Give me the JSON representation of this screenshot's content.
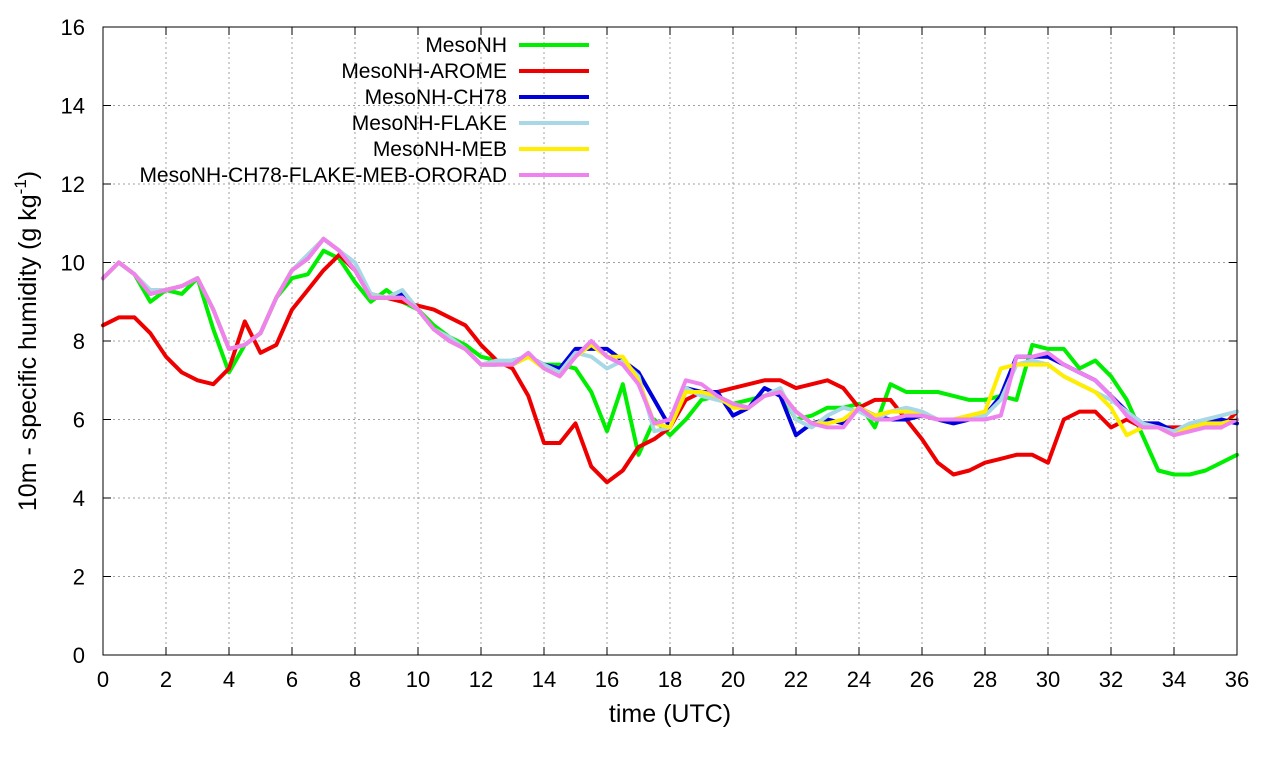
{
  "chart_data": {
    "type": "line",
    "title": "",
    "xlabel": "time (UTC)",
    "ylabel_main": "10m - specific humidity (g kg",
    "ylabel_sup": "-1",
    "ylabel_close": ")",
    "xlim": [
      0,
      36
    ],
    "ylim": [
      0,
      16
    ],
    "xticks": [
      0,
      2,
      4,
      6,
      8,
      10,
      12,
      14,
      16,
      18,
      20,
      22,
      24,
      26,
      28,
      30,
      32,
      34,
      36
    ],
    "yticks": [
      0,
      2,
      4,
      6,
      8,
      10,
      12,
      14,
      16
    ],
    "grid": true,
    "legend_position": "top-left",
    "series": [
      {
        "name": "MesoNH",
        "color": "#00ee00",
        "x": [
          0,
          0.5,
          1,
          1.5,
          2,
          2.5,
          3,
          3.5,
          4,
          4.5,
          5,
          5.5,
          6,
          6.5,
          7,
          7.5,
          8,
          8.5,
          9,
          9.5,
          10,
          10.5,
          11,
          11.5,
          12,
          12.5,
          13,
          13.5,
          14,
          14.5,
          15,
          15.5,
          16,
          16.5,
          17,
          17.5,
          18,
          18.5,
          19,
          19.5,
          20,
          20.5,
          21,
          21.5,
          22,
          22.5,
          23,
          23.5,
          24,
          24.5,
          25,
          25.5,
          26,
          26.5,
          27,
          27.5,
          28,
          28.5,
          29,
          29.5,
          30,
          30.5,
          31,
          31.5,
          32,
          32.5,
          33,
          33.5,
          34,
          34.5,
          35,
          35.5,
          36
        ],
        "values": [
          9.6,
          10.0,
          9.7,
          9.0,
          9.3,
          9.2,
          9.6,
          8.3,
          7.2,
          7.9,
          8.2,
          9.1,
          9.6,
          9.7,
          10.3,
          10.1,
          9.5,
          9.0,
          9.3,
          9.0,
          8.8,
          8.4,
          8.1,
          7.9,
          7.6,
          7.5,
          7.4,
          7.6,
          7.4,
          7.4,
          7.3,
          6.7,
          5.7,
          6.9,
          5.1,
          6.0,
          5.6,
          6.0,
          6.5,
          6.6,
          6.4,
          6.5,
          6.6,
          6.7,
          6.0,
          6.1,
          6.3,
          6.3,
          6.4,
          5.8,
          6.9,
          6.7,
          6.7,
          6.7,
          6.6,
          6.5,
          6.5,
          6.6,
          6.5,
          7.9,
          7.8,
          7.8,
          7.3,
          7.5,
          7.1,
          6.5,
          5.6,
          4.7,
          4.6,
          4.6,
          4.7,
          4.9,
          5.1
        ]
      },
      {
        "name": "MesoNH-AROME",
        "color": "#ee0000",
        "x": [
          0,
          0.5,
          1,
          1.5,
          2,
          2.5,
          3,
          3.5,
          4,
          4.5,
          5,
          5.5,
          6,
          6.5,
          7,
          7.5,
          8,
          8.5,
          9,
          9.5,
          10,
          10.5,
          11,
          11.5,
          12,
          12.5,
          13,
          13.5,
          14,
          14.5,
          15,
          15.5,
          16,
          16.5,
          17,
          17.5,
          18,
          18.5,
          19,
          19.5,
          20,
          20.5,
          21,
          21.5,
          22,
          22.5,
          23,
          23.5,
          24,
          24.5,
          25,
          25.5,
          26,
          26.5,
          27,
          27.5,
          28,
          28.5,
          29,
          29.5,
          30,
          30.5,
          31,
          31.5,
          32,
          32.5,
          33,
          33.5,
          34,
          34.5,
          35,
          35.5,
          36
        ],
        "values": [
          8.4,
          8.6,
          8.6,
          8.2,
          7.6,
          7.2,
          7.0,
          6.9,
          7.3,
          8.5,
          7.7,
          7.9,
          8.8,
          9.3,
          9.8,
          10.2,
          9.8,
          9.2,
          9.1,
          9.0,
          8.9,
          8.8,
          8.6,
          8.4,
          7.9,
          7.5,
          7.3,
          6.6,
          5.4,
          5.4,
          5.9,
          4.8,
          4.4,
          4.7,
          5.3,
          5.5,
          5.8,
          6.5,
          6.7,
          6.7,
          6.8,
          6.9,
          7.0,
          7.0,
          6.8,
          6.9,
          7.0,
          6.8,
          6.3,
          6.5,
          6.5,
          6.0,
          5.5,
          4.9,
          4.6,
          4.7,
          4.9,
          5.0,
          5.1,
          5.1,
          4.9,
          6.0,
          6.2,
          6.2,
          5.8,
          6.0,
          5.8,
          5.8,
          5.8,
          5.8,
          5.8,
          5.8,
          6.2
        ]
      },
      {
        "name": "MesoNH-CH78",
        "color": "#0000dd",
        "x": [
          0,
          0.5,
          1,
          1.5,
          2,
          2.5,
          3,
          3.5,
          4,
          4.5,
          5,
          5.5,
          6,
          6.5,
          7,
          7.5,
          8,
          8.5,
          9,
          9.5,
          10,
          10.5,
          11,
          11.5,
          12,
          12.5,
          13,
          13.5,
          14,
          14.5,
          15,
          15.5,
          16,
          16.5,
          17,
          17.5,
          18,
          18.5,
          19,
          19.5,
          20,
          20.5,
          21,
          21.5,
          22,
          22.5,
          23,
          23.5,
          24,
          24.5,
          25,
          25.5,
          26,
          26.5,
          27,
          27.5,
          28,
          28.5,
          29,
          29.5,
          30,
          30.5,
          31,
          31.5,
          32,
          32.5,
          33,
          33.5,
          34,
          34.5,
          35,
          35.5,
          36
        ],
        "values": [
          9.6,
          10.0,
          9.7,
          9.2,
          9.3,
          9.4,
          9.6,
          8.8,
          7.8,
          7.9,
          8.2,
          9.1,
          9.8,
          10.1,
          10.6,
          10.3,
          9.8,
          9.1,
          9.1,
          9.2,
          8.8,
          8.3,
          8.0,
          7.8,
          7.4,
          7.4,
          7.5,
          7.6,
          7.4,
          7.3,
          7.8,
          7.8,
          7.8,
          7.5,
          7.2,
          6.5,
          5.8,
          6.8,
          6.7,
          6.7,
          6.1,
          6.3,
          6.8,
          6.6,
          5.6,
          5.9,
          6.0,
          5.9,
          6.3,
          6.1,
          6.0,
          6.0,
          6.1,
          6.0,
          5.9,
          6.0,
          6.1,
          6.6,
          7.6,
          7.6,
          7.6,
          7.4,
          7.2,
          7.0,
          6.6,
          6.2,
          5.9,
          5.9,
          5.7,
          5.8,
          6.0,
          6.0,
          5.9
        ]
      },
      {
        "name": "MesoNH-FLAKE",
        "color": "#a8d8e6",
        "x": [
          0,
          0.5,
          1,
          1.5,
          2,
          2.5,
          3,
          3.5,
          4,
          4.5,
          5,
          5.5,
          6,
          6.5,
          7,
          7.5,
          8,
          8.5,
          9,
          9.5,
          10,
          10.5,
          11,
          11.5,
          12,
          12.5,
          13,
          13.5,
          14,
          14.5,
          15,
          15.5,
          16,
          16.5,
          17,
          17.5,
          18,
          18.5,
          19,
          19.5,
          20,
          20.5,
          21,
          21.5,
          22,
          22.5,
          23,
          23.5,
          24,
          24.5,
          25,
          25.5,
          26,
          26.5,
          27,
          27.5,
          28,
          28.5,
          29,
          29.5,
          30,
          30.5,
          31,
          31.5,
          32,
          32.5,
          33,
          33.5,
          34,
          34.5,
          35,
          35.5,
          36
        ],
        "values": [
          9.6,
          10.0,
          9.7,
          9.3,
          9.3,
          9.4,
          9.6,
          8.8,
          7.8,
          7.9,
          8.2,
          9.1,
          9.8,
          10.2,
          10.6,
          10.3,
          10.0,
          9.2,
          9.1,
          9.3,
          8.8,
          8.3,
          8.1,
          7.8,
          7.4,
          7.5,
          7.5,
          7.6,
          7.4,
          7.2,
          7.7,
          7.6,
          7.3,
          7.5,
          7.1,
          5.7,
          5.8,
          6.8,
          6.6,
          6.5,
          6.4,
          6.3,
          6.6,
          6.8,
          6.0,
          5.8,
          6.1,
          6.3,
          6.2,
          6.0,
          6.2,
          6.3,
          6.2,
          6.0,
          6.0,
          6.1,
          6.1,
          6.5,
          7.4,
          7.5,
          7.4,
          7.1,
          6.9,
          6.7,
          6.5,
          6.2,
          5.9,
          5.8,
          5.7,
          5.9,
          6.0,
          6.1,
          6.2
        ]
      },
      {
        "name": "MesoNH-MEB",
        "color": "#ffee00",
        "x": [
          0,
          0.5,
          1,
          1.5,
          2,
          2.5,
          3,
          3.5,
          4,
          4.5,
          5,
          5.5,
          6,
          6.5,
          7,
          7.5,
          8,
          8.5,
          9,
          9.5,
          10,
          10.5,
          11,
          11.5,
          12,
          12.5,
          13,
          13.5,
          14,
          14.5,
          15,
          15.5,
          16,
          16.5,
          17,
          17.5,
          18,
          18.5,
          19,
          19.5,
          20,
          20.5,
          21,
          21.5,
          22,
          22.5,
          23,
          23.5,
          24,
          24.5,
          25,
          25.5,
          26,
          26.5,
          27,
          27.5,
          28,
          28.5,
          29,
          29.5,
          30,
          30.5,
          31,
          31.5,
          32,
          32.5,
          33,
          33.5,
          34,
          34.5,
          35,
          35.5,
          36
        ],
        "values": [
          9.6,
          10.0,
          9.7,
          9.2,
          9.3,
          9.4,
          9.6,
          8.8,
          7.8,
          7.9,
          8.2,
          9.1,
          9.8,
          10.1,
          10.6,
          10.3,
          9.8,
          9.1,
          9.1,
          9.1,
          8.8,
          8.3,
          8.0,
          7.8,
          7.4,
          7.4,
          7.4,
          7.6,
          7.3,
          7.1,
          7.6,
          7.9,
          7.6,
          7.6,
          7.0,
          5.9,
          5.8,
          6.7,
          6.7,
          6.6,
          6.3,
          6.3,
          6.6,
          6.7,
          6.2,
          5.9,
          5.9,
          6.0,
          6.3,
          6.1,
          6.2,
          6.2,
          6.1,
          6.0,
          6.0,
          6.1,
          6.2,
          7.3,
          7.4,
          7.4,
          7.4,
          7.1,
          6.9,
          6.7,
          6.3,
          5.6,
          5.8,
          5.8,
          5.6,
          5.8,
          5.9,
          5.9,
          6.0
        ]
      },
      {
        "name": "MesoNH-CH78-FLAKE-MEB-ORORAD",
        "color": "#ee82ee",
        "x": [
          0,
          0.5,
          1,
          1.5,
          2,
          2.5,
          3,
          3.5,
          4,
          4.5,
          5,
          5.5,
          6,
          6.5,
          7,
          7.5,
          8,
          8.5,
          9,
          9.5,
          10,
          10.5,
          11,
          11.5,
          12,
          12.5,
          13,
          13.5,
          14,
          14.5,
          15,
          15.5,
          16,
          16.5,
          17,
          17.5,
          18,
          18.5,
          19,
          19.5,
          20,
          20.5,
          21,
          21.5,
          22,
          22.5,
          23,
          23.5,
          24,
          24.5,
          25,
          25.5,
          26,
          26.5,
          27,
          27.5,
          28,
          28.5,
          29,
          29.5,
          30,
          30.5,
          31,
          31.5,
          32,
          32.5,
          33,
          33.5,
          34,
          34.5,
          35,
          35.5,
          36
        ],
        "values": [
          9.6,
          10.0,
          9.7,
          9.2,
          9.3,
          9.4,
          9.6,
          8.8,
          7.8,
          7.9,
          8.2,
          9.1,
          9.8,
          10.1,
          10.6,
          10.3,
          9.8,
          9.1,
          9.1,
          9.1,
          8.8,
          8.3,
          8.0,
          7.8,
          7.4,
          7.4,
          7.4,
          7.7,
          7.3,
          7.1,
          7.6,
          8.0,
          7.6,
          7.4,
          6.9,
          5.9,
          6.0,
          7.0,
          6.9,
          6.6,
          6.4,
          6.3,
          6.6,
          6.7,
          6.2,
          5.9,
          5.8,
          5.8,
          6.3,
          6.0,
          6.0,
          6.1,
          6.1,
          6.0,
          6.0,
          6.0,
          6.0,
          6.1,
          7.6,
          7.6,
          7.7,
          7.4,
          7.2,
          7.0,
          6.6,
          6.1,
          5.8,
          5.8,
          5.6,
          5.7,
          5.8,
          5.8,
          6.0
        ]
      }
    ]
  }
}
